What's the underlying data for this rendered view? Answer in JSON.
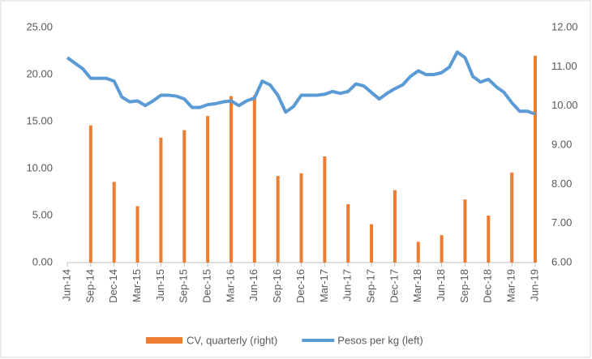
{
  "chart_data": {
    "type": "bar-line",
    "categories": [
      "Jun-14",
      null,
      null,
      "Sep-14",
      null,
      null,
      "Dec-14",
      null,
      null,
      "Mar-15",
      null,
      null,
      "Jun-15",
      null,
      null,
      "Sep-15",
      null,
      null,
      "Dec-15",
      null,
      null,
      "Mar-16",
      null,
      null,
      "Jun-16",
      null,
      null,
      "Sep-16",
      null,
      null,
      "Dec-16",
      null,
      null,
      "Mar-17",
      null,
      null,
      "Jun-17",
      null,
      null,
      "Sep-17",
      null,
      null,
      "Dec-17",
      null,
      null,
      "Mar-18",
      null,
      null,
      "Jun-18",
      null,
      null,
      "Sep-18",
      null,
      null,
      "Dec-18",
      null,
      null,
      "Mar-19",
      null,
      null,
      "Jun-19"
    ],
    "series": [
      {
        "name": "CV, quarterly (right)",
        "type": "bar",
        "color": "#ed7d31",
        "axis": "y2",
        "values": [
          null,
          null,
          null,
          9.5,
          null,
          null,
          8.06,
          null,
          null,
          7.44,
          null,
          null,
          9.19,
          null,
          null,
          9.38,
          null,
          null,
          9.74,
          null,
          null,
          10.25,
          null,
          null,
          10.27,
          null,
          null,
          8.21,
          null,
          null,
          8.28,
          null,
          null,
          8.71,
          null,
          null,
          7.49,
          null,
          null,
          6.98,
          null,
          null,
          7.85,
          null,
          null,
          6.53,
          null,
          null,
          6.7,
          null,
          null,
          7.61,
          null,
          null,
          7.2,
          null,
          null,
          8.3,
          null,
          null,
          11.28
        ]
      },
      {
        "name": "Pesos per kg (left)",
        "type": "line",
        "color": "#5b9bd5",
        "values": [
          21.8,
          21.2,
          20.6,
          19.6,
          19.6,
          19.6,
          19.3,
          17.6,
          17.1,
          17.2,
          16.7,
          17.2,
          17.8,
          17.8,
          17.7,
          17.4,
          16.5,
          16.5,
          16.8,
          16.9,
          17.1,
          17.2,
          16.7,
          17.2,
          17.5,
          19.3,
          18.9,
          17.8,
          16.0,
          16.6,
          17.8,
          17.8,
          17.8,
          17.9,
          18.2,
          18.0,
          18.2,
          19.0,
          18.8,
          18.1,
          17.4,
          18.0,
          18.5,
          18.9,
          19.8,
          20.4,
          20.0,
          20.0,
          20.2,
          20.8,
          22.4,
          21.8,
          19.8,
          19.2,
          19.5,
          18.7,
          18.1,
          17.0,
          16.1,
          16.1,
          15.8
        ]
      }
    ],
    "ylim": [
      0,
      25
    ],
    "yticks": [
      {
        "value": 0,
        "label": "0.00"
      },
      {
        "value": 5,
        "label": "5.00"
      },
      {
        "value": 10,
        "label": "10.00"
      },
      {
        "value": 15,
        "label": "15.00"
      },
      {
        "value": 20,
        "label": "20.00"
      },
      {
        "value": 25,
        "label": "25.00"
      }
    ],
    "y2lim": [
      6,
      12
    ],
    "y2ticks": [
      {
        "value": 6,
        "label": "6.00"
      },
      {
        "value": 7,
        "label": "7.00"
      },
      {
        "value": 8,
        "label": "8.00"
      },
      {
        "value": 9,
        "label": "9.00"
      },
      {
        "value": 10,
        "label": "10.00"
      },
      {
        "value": 11,
        "label": "11.00"
      },
      {
        "value": 12,
        "label": "12.00"
      }
    ],
    "grid": false,
    "legend": "bottom"
  }
}
